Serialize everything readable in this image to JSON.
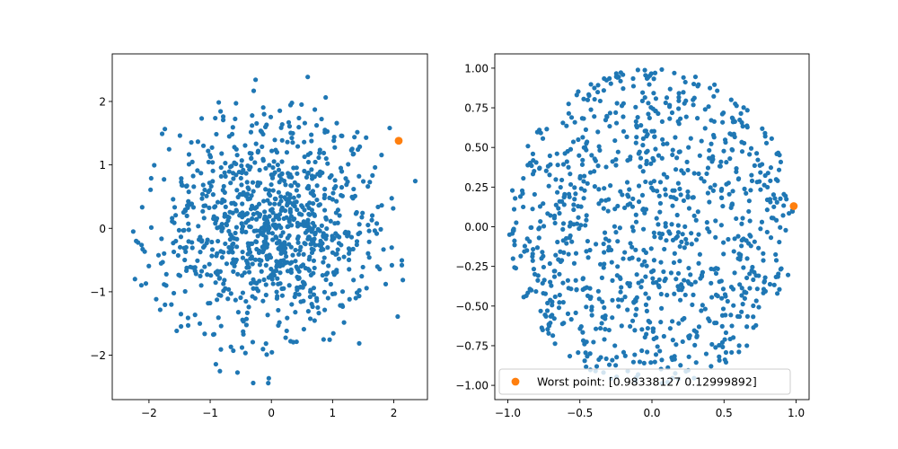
{
  "chart_data": [
    {
      "type": "scatter",
      "xlim": [
        -2.6,
        2.55
      ],
      "ylim": [
        -2.7,
        2.75
      ],
      "xticks": [
        -2,
        -1,
        0,
        1,
        2
      ],
      "yticks": [
        -2,
        -1,
        0,
        1,
        2
      ],
      "xtick_labels": [
        "−2",
        "−1",
        "0",
        "1",
        "2"
      ],
      "ytick_labels": [
        "−2",
        "−1",
        "0",
        "1",
        "2"
      ],
      "grid": false,
      "series": [
        {
          "role": "points",
          "color": "#1f77b4",
          "count": 1000,
          "distribution": "gaussian-disk",
          "max_radius": 2.5,
          "x": [],
          "y": []
        },
        {
          "role": "worst-point",
          "color": "#ff7f0e",
          "x": [
            2.08
          ],
          "y": [
            1.38
          ]
        }
      ],
      "legend": null
    },
    {
      "type": "scatter",
      "xlim": [
        -1.09,
        1.09
      ],
      "ylim": [
        -1.09,
        1.09
      ],
      "xticks": [
        -1.0,
        -0.5,
        0.0,
        0.5,
        1.0
      ],
      "yticks": [
        -1.0,
        -0.75,
        -0.5,
        -0.25,
        0.0,
        0.25,
        0.5,
        0.75,
        1.0
      ],
      "xtick_labels": [
        "−1.0",
        "−0.5",
        "0.0",
        "0.5",
        "1.0"
      ],
      "ytick_labels": [
        "−1.00",
        "−0.75",
        "−0.50",
        "−0.25",
        "0.00",
        "0.25",
        "0.50",
        "0.75",
        "1.00"
      ],
      "grid": false,
      "series": [
        {
          "role": "points",
          "color": "#1f77b4",
          "count": 1000,
          "distribution": "uniform-disk",
          "max_radius": 1.0,
          "x": [],
          "y": []
        },
        {
          "role": "worst-point",
          "name": "Worst point: [0.98338127 0.12999892]",
          "color": "#ff7f0e",
          "x": [
            0.98338127
          ],
          "y": [
            0.12999892
          ]
        }
      ],
      "legend": {
        "placement": "lower-left",
        "entries": [
          "Worst point: [0.98338127 0.12999892]"
        ]
      }
    }
  ]
}
